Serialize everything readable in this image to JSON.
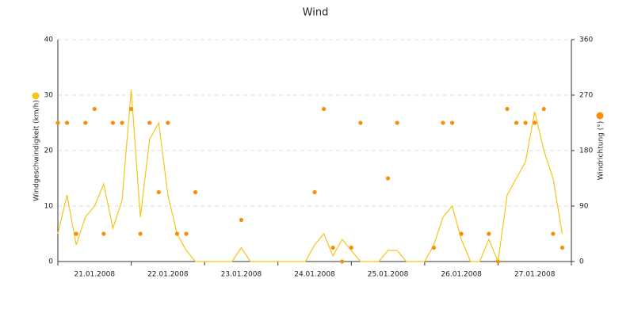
{
  "chart_data": {
    "type": "line-scatter",
    "title": "Wind",
    "categories": [
      null,
      null,
      null,
      null,
      "21.01.2008",
      null,
      null,
      null,
      null,
      null,
      null,
      null,
      "22.01.2008",
      null,
      null,
      null,
      null,
      null,
      null,
      null,
      "23.01.2008",
      null,
      null,
      null,
      null,
      null,
      null,
      null,
      "24.01.2008",
      null,
      null,
      null,
      null,
      null,
      null,
      null,
      "25.01.2008",
      null,
      null,
      null,
      null,
      null,
      null,
      null,
      "26.01.2008",
      null,
      null,
      null,
      null,
      null,
      null,
      null,
      "27.01.2008",
      null,
      null,
      null
    ],
    "series": [
      {
        "name": "Windgeschwindigkeit (km/h)",
        "color": "#f5c518",
        "type": "line",
        "values": [
          5,
          12,
          3,
          8,
          10,
          14,
          6,
          11,
          31,
          8,
          22,
          25,
          12,
          5,
          2,
          0,
          0,
          0,
          0,
          0,
          2.5,
          0,
          0,
          0,
          0,
          0,
          0,
          0,
          3,
          5,
          1,
          4,
          2,
          0,
          0,
          0,
          2,
          2,
          0,
          0,
          0,
          3,
          8,
          10,
          4,
          0,
          0,
          4,
          0,
          12,
          15,
          18,
          27,
          20,
          15,
          5
        ]
      },
      {
        "name": "Windrichtung (°)",
        "color": "#f78f0a",
        "type": "scatter",
        "axis": "y2",
        "values": [
          225,
          225,
          45,
          225,
          247.5,
          45,
          225,
          225,
          247.5,
          45,
          225,
          112.5,
          225,
          45,
          45,
          112.5,
          null,
          null,
          null,
          null,
          67.5,
          null,
          null,
          null,
          null,
          null,
          null,
          null,
          112.5,
          247.5,
          22.5,
          0,
          22.5,
          225,
          null,
          null,
          135,
          225,
          null,
          null,
          null,
          22.5,
          225,
          225,
          45,
          null,
          null,
          45,
          0,
          247.5,
          225,
          225,
          225,
          247.5,
          45,
          22.5
        ]
      }
    ],
    "ylim": [
      0,
      40
    ],
    "yticks": [
      0,
      10,
      20,
      30,
      40
    ],
    "y2lim": [
      0,
      360
    ],
    "y2ticks": [
      0,
      90,
      180,
      270,
      360
    ],
    "grid": true
  }
}
